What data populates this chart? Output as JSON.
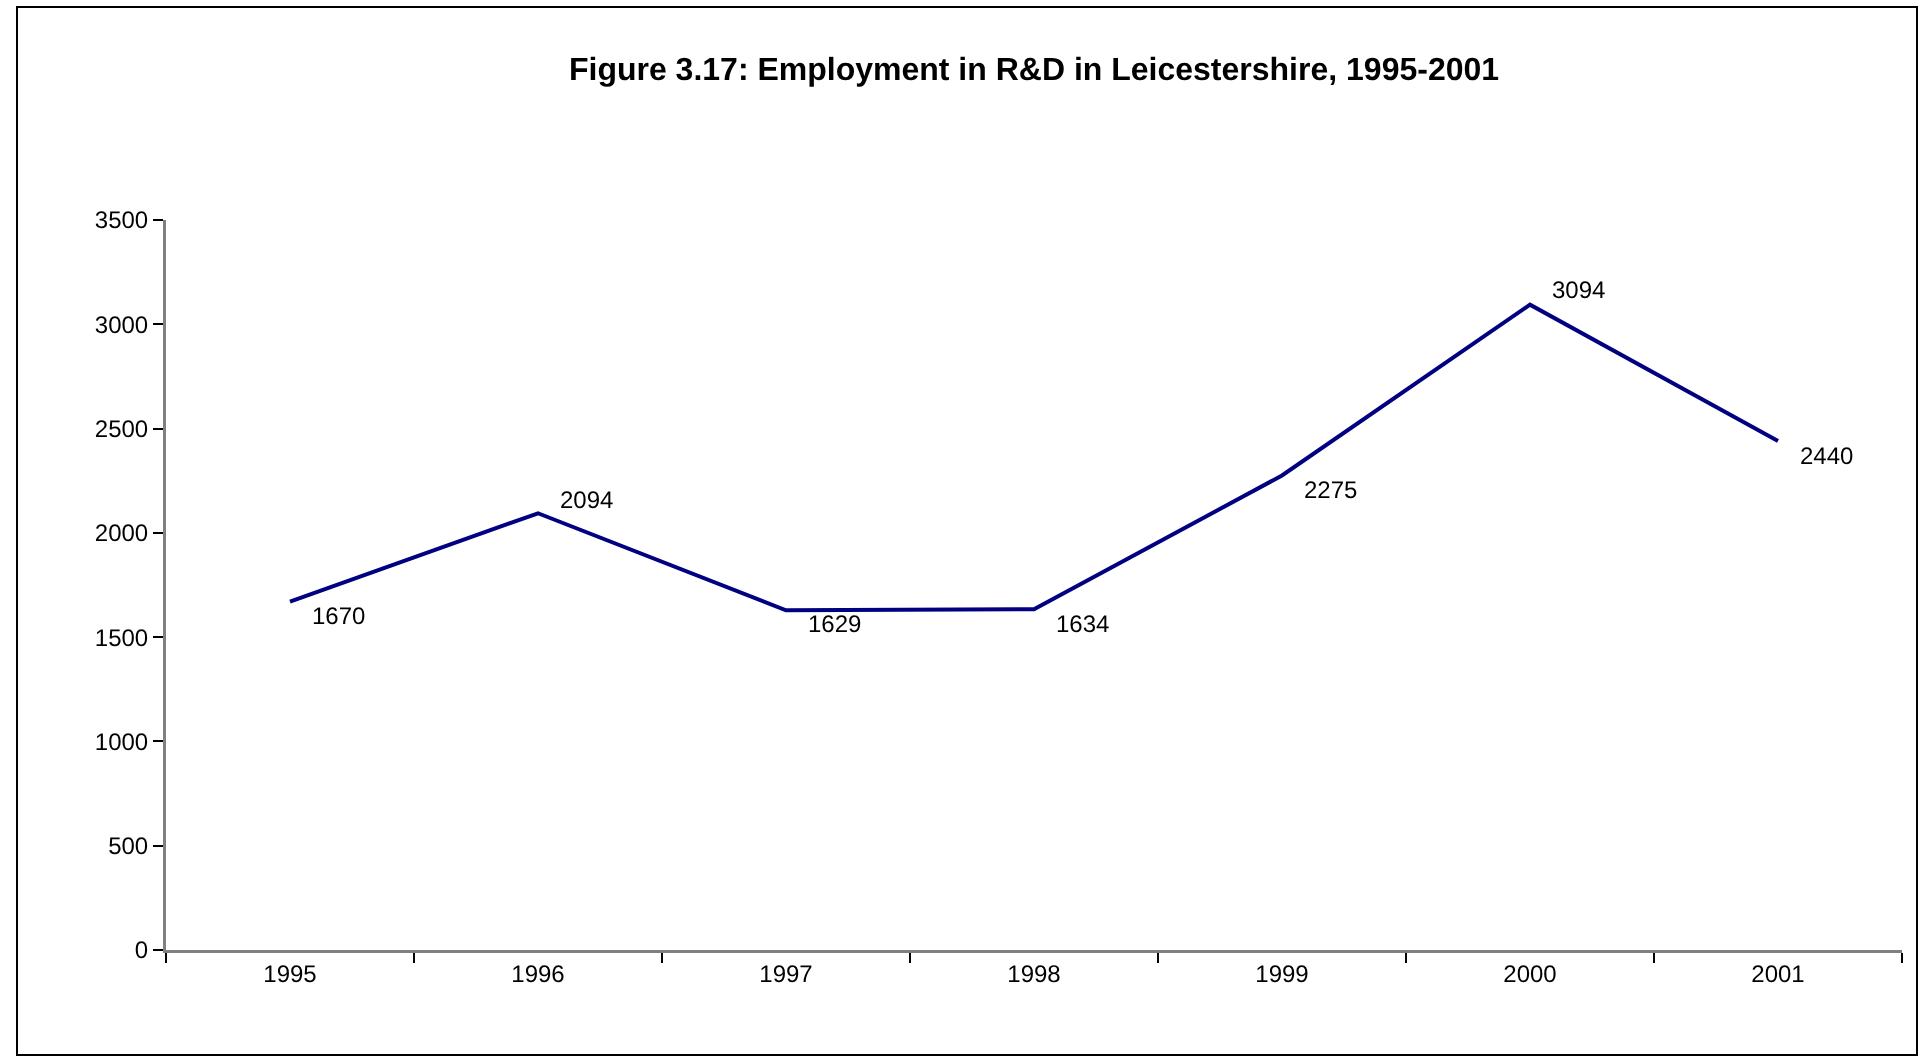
{
  "chart_data": {
    "type": "line",
    "title": "Figure 3.17: Employment in R&D in Leicestershire, 1995-2001",
    "categories": [
      "1995",
      "1996",
      "1997",
      "1998",
      "1999",
      "2000",
      "2001"
    ],
    "values": [
      1670,
      2094,
      1629,
      1634,
      2275,
      3094,
      2440
    ],
    "color": "#000080",
    "ylim": [
      0,
      3500
    ],
    "yticks": [
      0,
      500,
      1000,
      1500,
      2000,
      2500,
      3000,
      3500
    ],
    "data_labels": true
  }
}
